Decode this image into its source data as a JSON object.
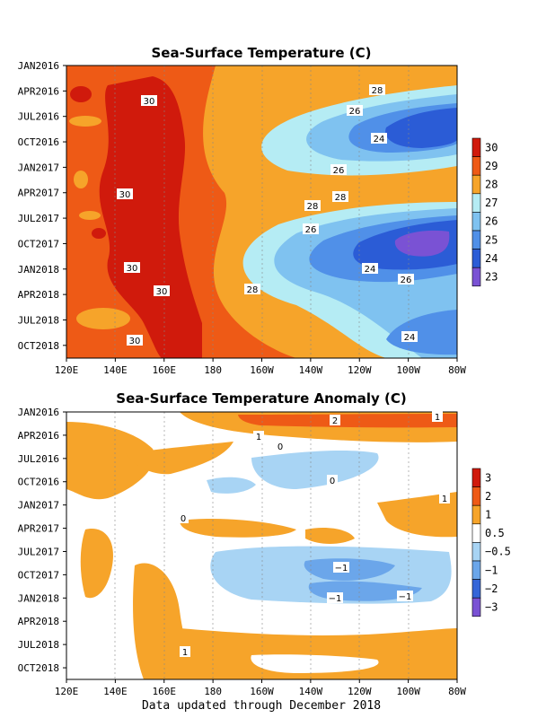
{
  "chart_data": [
    {
      "type": "heatmap",
      "title": "Sea-Surface Temperature (C)",
      "x_ticks": [
        "120E",
        "140E",
        "160E",
        "180",
        "160W",
        "140W",
        "120W",
        "100W",
        "80W"
      ],
      "y_ticks": [
        "JAN2016",
        "APR2016",
        "JUL2016",
        "OCT2016",
        "JAN2017",
        "APR2017",
        "JUL2017",
        "OCT2017",
        "JAN2018",
        "APR2018",
        "JUL2018",
        "OCT2018"
      ],
      "colorbar": {
        "labels": [
          "30",
          "29",
          "28",
          "27",
          "26",
          "25",
          "24",
          "23"
        ],
        "colors": [
          "#d01a0c",
          "#ee5a16",
          "#f6a42a",
          "#b5ecf4",
          "#7fc2f0",
          "#5090e8",
          "#2b5cd6",
          "#7a52d4"
        ]
      },
      "contour_labels": [
        "30",
        "30",
        "30",
        "30",
        "30",
        "28",
        "26",
        "24",
        "26",
        "28",
        "28",
        "26",
        "24",
        "26",
        "28",
        "24"
      ]
    },
    {
      "type": "heatmap",
      "title": "Sea-Surface Temperature Anomaly (C)",
      "x_ticks": [
        "120E",
        "140E",
        "160E",
        "180",
        "160W",
        "140W",
        "120W",
        "100W",
        "80W"
      ],
      "y_ticks": [
        "JAN2016",
        "APR2016",
        "JUL2016",
        "OCT2016",
        "JAN2017",
        "APR2017",
        "JUL2017",
        "OCT2017",
        "JAN2018",
        "APR2018",
        "JUL2018",
        "OCT2018"
      ],
      "colorbar": {
        "labels": [
          "3",
          "2",
          "1",
          "0.5",
          "−0.5",
          "−1",
          "−2",
          "−3"
        ],
        "colors": [
          "#d01a0c",
          "#ee5a16",
          "#f6a42a",
          "#ffffff",
          "#a8d4f4",
          "#6ba6ea",
          "#3465d8",
          "#7a52d4"
        ]
      },
      "contour_labels": [
        "2",
        "1",
        "1",
        "0",
        "0",
        "1",
        "0",
        "−1",
        "−1",
        "−1",
        "1"
      ]
    }
  ],
  "footer": "Data updated through December 2018"
}
